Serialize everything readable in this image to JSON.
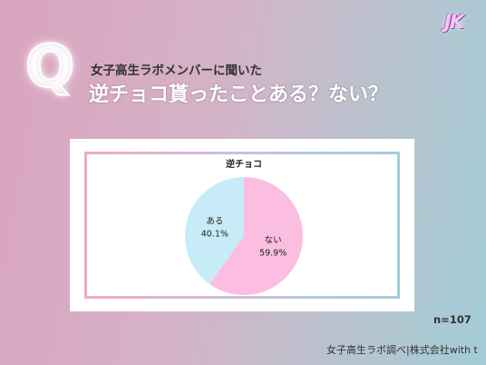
{
  "logo": {
    "text": "JK"
  },
  "header": {
    "q_mark": "Q",
    "subtitle": "女子高生ラボメンバーに聞いた",
    "title": "逆チョコ貰ったことある？ない？"
  },
  "chart_data": {
    "type": "pie",
    "title": "逆チョコ",
    "slices": [
      {
        "label": "ない",
        "value": 59.9,
        "display": "59.9%",
        "color": "#fbbde0"
      },
      {
        "label": "ある",
        "value": 40.1,
        "display": "40.1%",
        "color": "#c7ecf7"
      }
    ]
  },
  "footer": {
    "n_label": "n=107",
    "credit": "女子高生ラボ調べ|株式会社with t"
  }
}
